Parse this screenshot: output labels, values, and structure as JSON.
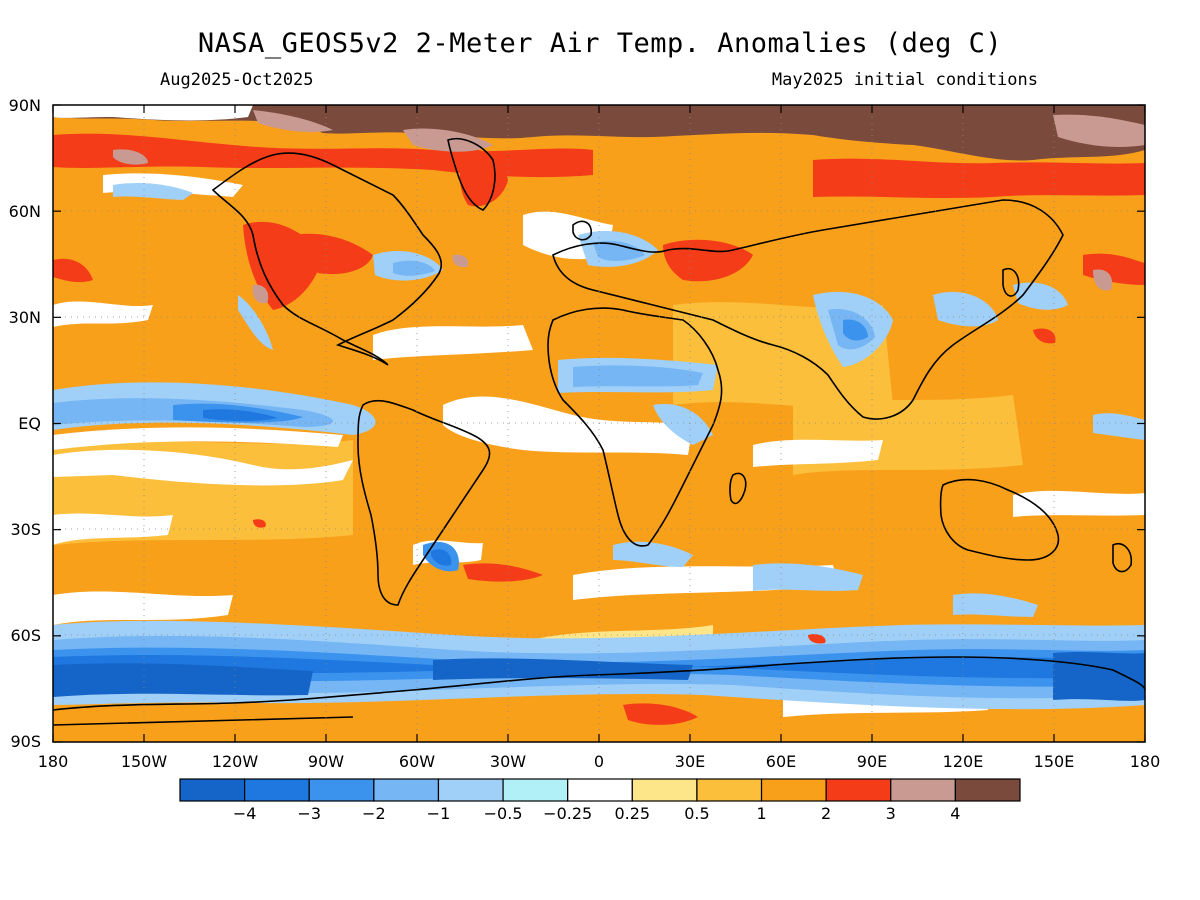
{
  "header": {
    "title": "NASA_GEOS5v2 2-Meter Air Temp. Anomalies (deg C)",
    "period": "Aug2025-Oct2025",
    "init": "May2025 initial conditions"
  },
  "map": {
    "lon_labels": [
      "180",
      "150W",
      "120W",
      "90W",
      "60W",
      "30W",
      "0",
      "30E",
      "60E",
      "90E",
      "120E",
      "150E",
      "180"
    ],
    "lat_labels": [
      "90N",
      "60N",
      "30N",
      "EQ",
      "30S",
      "60S",
      "90S"
    ]
  },
  "colorbar": {
    "colors": [
      "#1565c8",
      "#1f78e0",
      "#3c93ee",
      "#76b6f4",
      "#a0d0f7",
      "#b2f0f7",
      "#ffffff",
      "#fde68a",
      "#fbbf3b",
      "#f9a01b",
      "#f43c18",
      "#c89a92",
      "#7a4b3c"
    ],
    "labels": [
      "−4",
      "−3",
      "−2",
      "−1",
      "−0.5",
      "−0.25",
      "0.25",
      "0.5",
      "1",
      "2",
      "3",
      "4"
    ]
  },
  "palette": {
    "bg_anomaly": "#f9a01b",
    "warm_light": "#fbbf3b",
    "warm_pale": "#fde68a",
    "neutral": "#ffffff",
    "cool_pale": "#b2f0f7",
    "cool_light": "#a0d0f7",
    "cool_mid": "#76b6f4",
    "cool": "#3c93ee",
    "cool_strong": "#1f78e0",
    "cool_deep": "#1565c8",
    "hot": "#f43c18",
    "very_hot": "#c89a92",
    "extreme": "#7a4b3c"
  }
}
